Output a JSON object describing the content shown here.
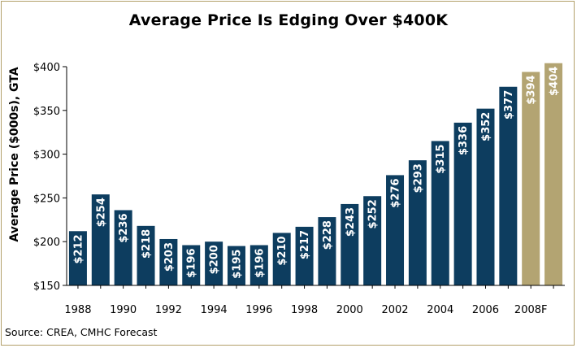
{
  "chart_data": {
    "type": "bar",
    "title": "Average Price Is Edging Over $400K",
    "ylabel": "Average Price ($000s), GTA",
    "xlabel": "",
    "source": "Source: CREA, CMHC Forecast",
    "ylim": [
      150,
      400
    ],
    "yticks": [
      150,
      200,
      250,
      300,
      350,
      400
    ],
    "ytick_labels": [
      "$150",
      "$200",
      "$250",
      "$300",
      "$350",
      "$400"
    ],
    "categories": [
      "1988",
      "1989",
      "1990",
      "1991",
      "1992",
      "1993",
      "1994",
      "1995",
      "1996",
      "1997",
      "1998",
      "1999",
      "2000",
      "2001",
      "2002",
      "2003",
      "2004",
      "2005",
      "2006",
      "2007",
      "2008F",
      "2009F"
    ],
    "xtick_labels": [
      "1988",
      "",
      "1990",
      "",
      "1992",
      "",
      "1994",
      "",
      "1996",
      "",
      "1998",
      "",
      "2000",
      "",
      "2002",
      "",
      "2004",
      "",
      "2006",
      "",
      "2008F",
      ""
    ],
    "values": [
      212,
      254,
      236,
      218,
      203,
      196,
      200,
      195,
      196,
      210,
      217,
      228,
      243,
      252,
      276,
      293,
      315,
      336,
      352,
      377,
      394,
      404
    ],
    "data_labels": [
      "$212",
      "$254",
      "$236",
      "$218",
      "$203",
      "$196",
      "$200",
      "$195",
      "$196",
      "$210",
      "$217",
      "$228",
      "$243",
      "$252",
      "$276",
      "$293",
      "$315",
      "$336",
      "$352",
      "$377",
      "$394",
      "$404"
    ],
    "forecast": [
      false,
      false,
      false,
      false,
      false,
      false,
      false,
      false,
      false,
      false,
      false,
      false,
      false,
      false,
      false,
      false,
      false,
      false,
      false,
      false,
      true,
      true
    ],
    "colors": {
      "actual": "#0d3d5f",
      "forecast": "#b3a472",
      "border": "#b2a06a"
    },
    "grid": false,
    "legend": "none"
  }
}
